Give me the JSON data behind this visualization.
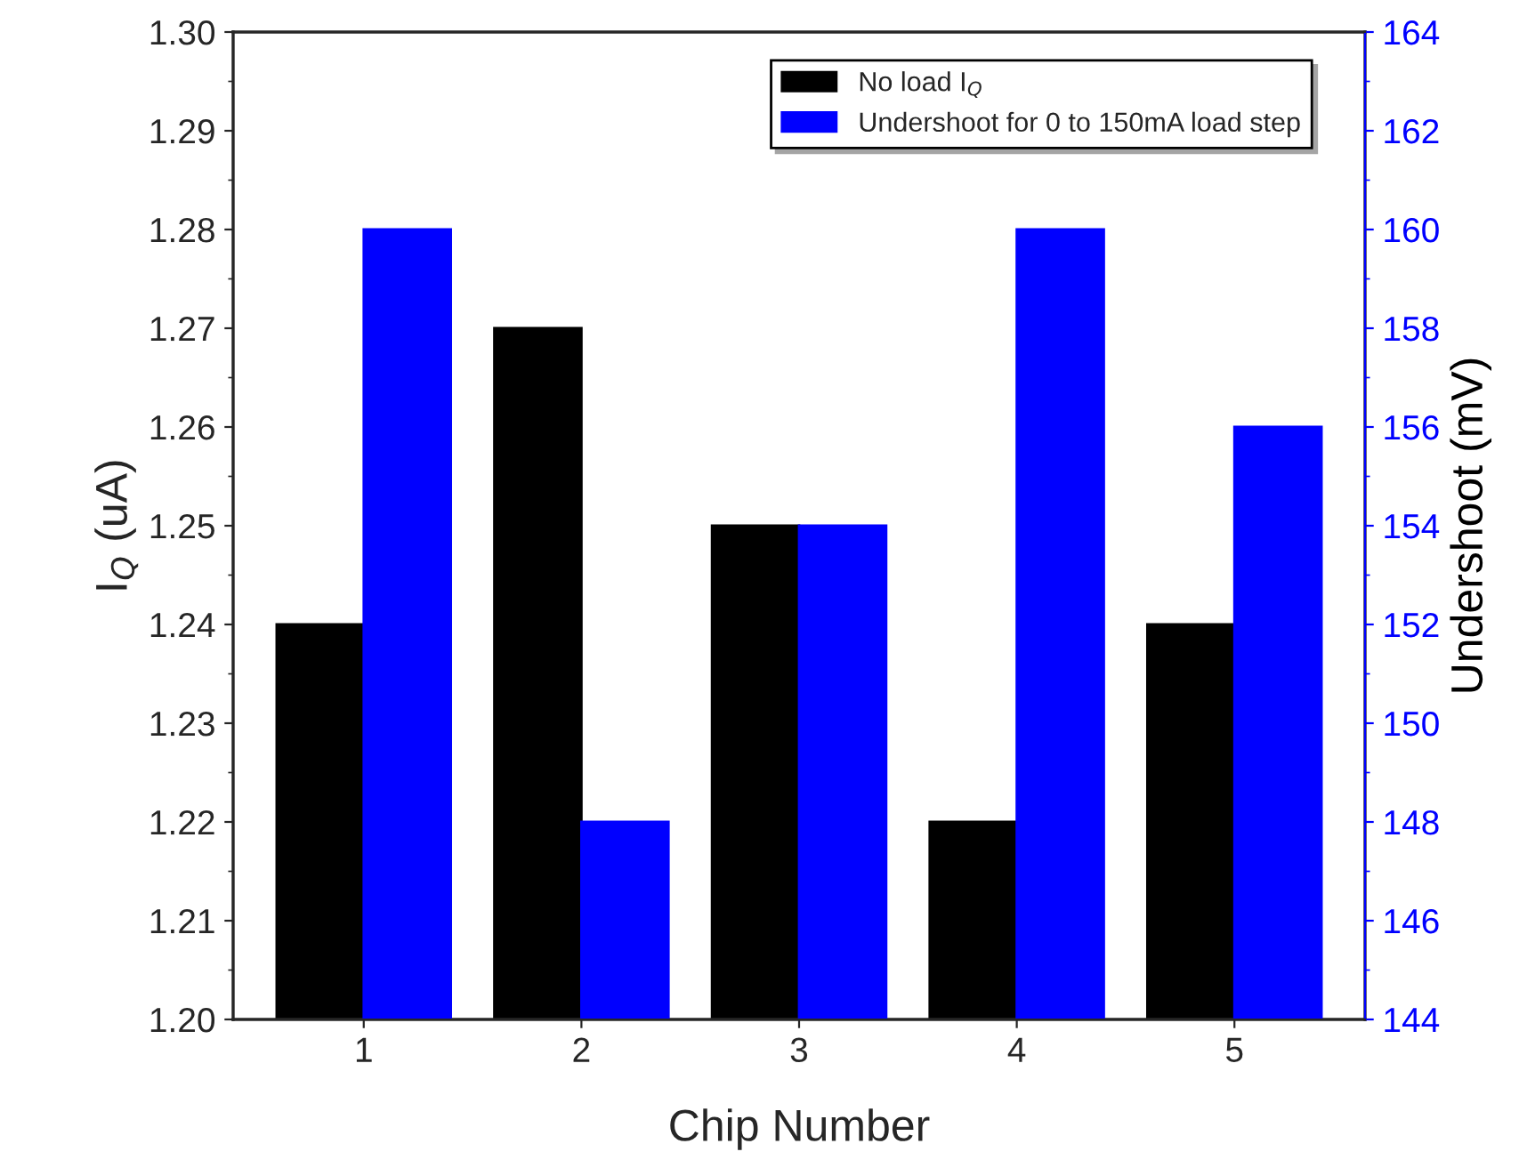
{
  "chart_data": {
    "type": "bar",
    "xlabel": "Chip Number",
    "ylabel": "I$_{Q}$ (uA)",
    "y2label": "Undershoot (mV)",
    "categories": [
      "1",
      "2",
      "3",
      "4",
      "5"
    ],
    "series": [
      {
        "name": "No load I$_{Q}$",
        "color": "#000000",
        "values": [
          1.24,
          1.27,
          1.25,
          1.22,
          1.24
        ]
      },
      {
        "name": "Undershoot for 0 to 150mA load step",
        "color": "#0000ff",
        "axis": "y2",
        "values": [
          160,
          148,
          154,
          160,
          156
        ]
      }
    ],
    "ylim": [
      1.2,
      1.3
    ],
    "yticks": [
      {
        "value": 1.2,
        "label": "1.20"
      },
      {
        "value": 1.21,
        "label": "1.21"
      },
      {
        "value": 1.22,
        "label": "1.22"
      },
      {
        "value": 1.23,
        "label": "1.23"
      },
      {
        "value": 1.24,
        "label": "1.24"
      },
      {
        "value": 1.25,
        "label": "1.25"
      },
      {
        "value": 1.26,
        "label": "1.26"
      },
      {
        "value": 1.27,
        "label": "1.27"
      },
      {
        "value": 1.28,
        "label": "1.28"
      },
      {
        "value": 1.29,
        "label": "1.29"
      },
      {
        "value": 1.3,
        "label": "1.30"
      }
    ],
    "y2lim": [
      144,
      164
    ],
    "y2ticks": [
      144,
      146,
      148,
      150,
      152,
      154,
      156,
      158,
      160,
      162,
      164
    ],
    "legend": "top right",
    "grid": false
  }
}
